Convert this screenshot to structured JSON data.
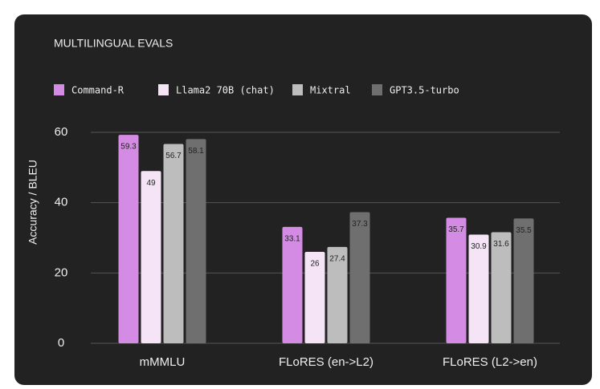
{
  "chart_data": {
    "type": "bar",
    "title": "MULTILINGUAL EVALS",
    "y_label": "Accuracy / BLEU",
    "categories": [
      "mMMLU",
      "FLoRES (en->L2)",
      "FLoRES (L2->en)"
    ],
    "series": [
      {
        "name": "Command-R",
        "color": "#d48be3",
        "values": [
          59.3,
          33.1,
          35.7
        ]
      },
      {
        "name": "Llama2 70B (chat)",
        "color": "#f4e4f6",
        "values": [
          49,
          26,
          30.9
        ]
      },
      {
        "name": "Mixtral",
        "color": "#bdbdbd",
        "values": [
          56.7,
          27.4,
          31.6
        ]
      },
      {
        "name": "GPT3.5-turbo",
        "color": "#6f6f6f",
        "values": [
          58.1,
          37.3,
          35.5
        ]
      }
    ],
    "ylim": [
      0,
      60
    ],
    "yticks": [
      0,
      20,
      40,
      60
    ],
    "grid": true
  }
}
